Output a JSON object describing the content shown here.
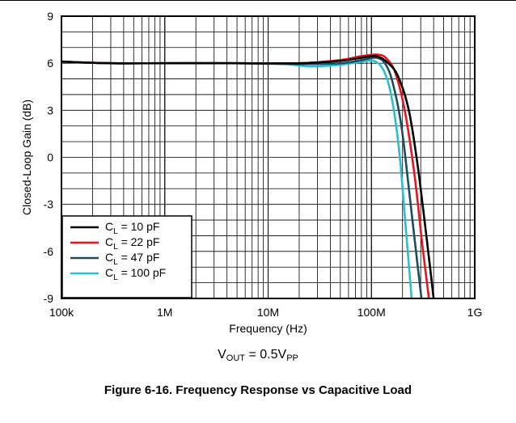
{
  "chart_data": {
    "type": "line",
    "xscale": "log",
    "xlim": [
      100000,
      1000000000
    ],
    "ylim": [
      -9,
      9
    ],
    "grid": true,
    "legend_position": "bottom-left",
    "xlabel": "Frequency (Hz)",
    "ylabel": "Closed-Loop Gain (dB)",
    "x_ticks": [
      {
        "value": 100000,
        "label": "100k"
      },
      {
        "value": 1000000,
        "label": "1M"
      },
      {
        "value": 10000000,
        "label": "10M"
      },
      {
        "value": 100000000,
        "label": "100M"
      },
      {
        "value": 1000000000,
        "label": "1G"
      }
    ],
    "y_ticks": [
      {
        "value": 9,
        "label": "9"
      },
      {
        "value": 6,
        "label": "6"
      },
      {
        "value": 3,
        "label": "3"
      },
      {
        "value": 0,
        "label": "0"
      },
      {
        "value": -3,
        "label": "-3"
      },
      {
        "value": -6,
        "label": "-6"
      },
      {
        "value": -9,
        "label": "-9"
      }
    ],
    "series": [
      {
        "name": "C_L = 10 pF",
        "legend": {
          "main": "C",
          "sub": "L",
          "rest": " = 10 pF"
        },
        "color": "#000000",
        "x": [
          100000,
          300000,
          1000000,
          5000000,
          20000000,
          50000000,
          80000000,
          110000000,
          140000000,
          180000000,
          230000000,
          280000000,
          340000000,
          400000000
        ],
        "y": [
          6.1,
          6.0,
          6.0,
          6.0,
          6.0,
          6.15,
          6.35,
          6.45,
          6.1,
          5.2,
          3.0,
          -0.5,
          -5.0,
          -9.0
        ]
      },
      {
        "name": "C_L = 22 pF",
        "legend": {
          "main": "C",
          "sub": "L",
          "rest": " = 22 pF"
        },
        "color": "#e8141c",
        "x": [
          100000,
          300000,
          1000000,
          5000000,
          20000000,
          50000000,
          80000000,
          115000000,
          140000000,
          170000000,
          210000000,
          260000000,
          310000000,
          360000000
        ],
        "y": [
          6.1,
          6.0,
          6.0,
          6.0,
          6.0,
          6.2,
          6.45,
          6.55,
          6.3,
          5.4,
          3.0,
          -1.0,
          -5.5,
          -9.0
        ]
      },
      {
        "name": "C_L = 47 pF",
        "legend": {
          "main": "C",
          "sub": "L",
          "rest": " = 47 pF"
        },
        "color": "#1b4d5e",
        "x": [
          100000,
          300000,
          1000000,
          5000000,
          20000000,
          50000000,
          80000000,
          110000000,
          135000000,
          160000000,
          195000000,
          235000000,
          270000000,
          305000000
        ],
        "y": [
          6.1,
          6.0,
          6.0,
          6.0,
          5.95,
          6.0,
          6.2,
          6.35,
          6.0,
          4.8,
          2.0,
          -2.5,
          -6.0,
          -9.0
        ]
      },
      {
        "name": "C_L = 100 pF",
        "legend": {
          "main": "C",
          "sub": "L",
          "rest": " = 100 pF"
        },
        "color": "#2bbcd4",
        "x": [
          100000,
          300000,
          1000000,
          5000000,
          15000000,
          25000000,
          50000000,
          80000000,
          105000000,
          130000000,
          155000000,
          185000000,
          215000000,
          245000000
        ],
        "y": [
          6.1,
          6.0,
          6.0,
          6.0,
          5.95,
          5.8,
          5.9,
          6.1,
          6.15,
          5.6,
          4.0,
          0.5,
          -4.5,
          -9.0
        ]
      }
    ]
  },
  "annotation": {
    "main": "V",
    "sub": "OUT",
    "mid": " = 0.5V",
    "sub2": "PP"
  },
  "caption": "Figure 6-16. Frequency Response vs Capacitive Load"
}
